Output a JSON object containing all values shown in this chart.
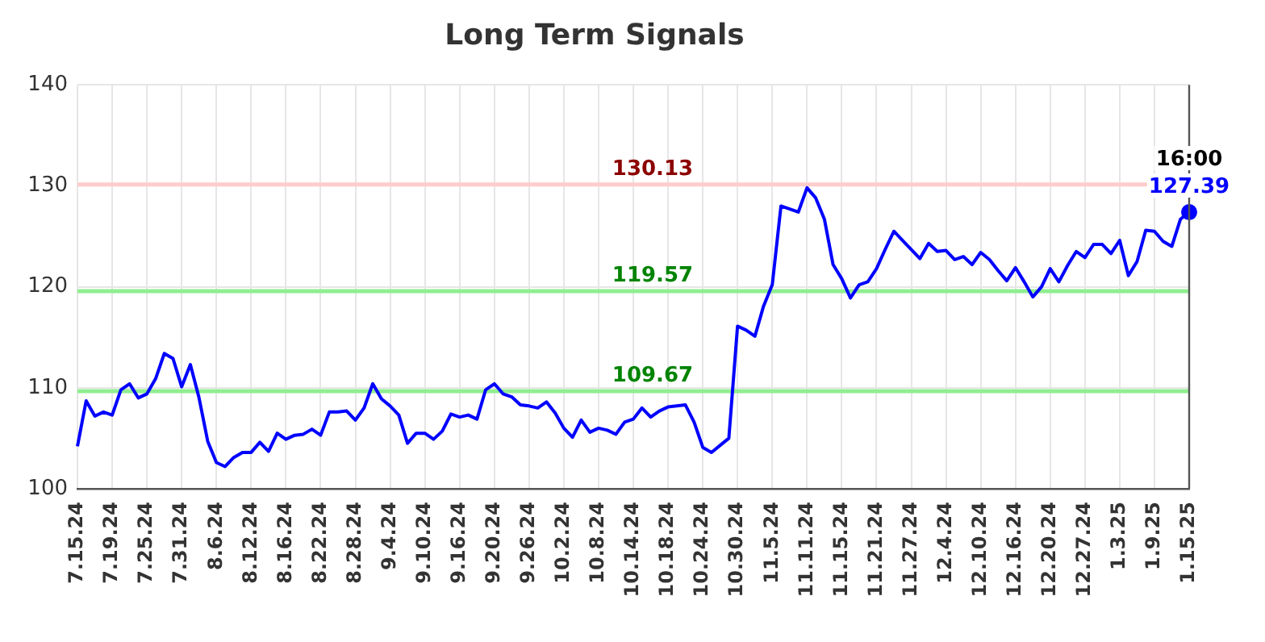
{
  "chart_data": {
    "type": "line",
    "title": "Long Term Signals",
    "categories": [
      "7.15.24",
      null,
      null,
      null,
      "7.19.24",
      null,
      null,
      null,
      "7.25.24",
      null,
      null,
      null,
      "7.31.24",
      null,
      null,
      null,
      "8.6.24",
      null,
      null,
      null,
      "8.12.24",
      null,
      null,
      null,
      "8.16.24",
      null,
      null,
      null,
      "8.22.24",
      null,
      null,
      null,
      "8.28.24",
      null,
      null,
      null,
      "9.4.24",
      null,
      null,
      null,
      "9.10.24",
      null,
      null,
      null,
      "9.16.24",
      null,
      null,
      null,
      "9.20.24",
      null,
      null,
      null,
      "9.26.24",
      null,
      null,
      null,
      "10.2.24",
      null,
      null,
      null,
      "10.8.24",
      null,
      null,
      null,
      "10.14.24",
      null,
      null,
      null,
      "10.18.24",
      null,
      null,
      null,
      "10.24.24",
      null,
      null,
      null,
      "10.30.24",
      null,
      null,
      null,
      "11.5.24",
      null,
      null,
      null,
      "11.11.24",
      null,
      null,
      null,
      "11.15.24",
      null,
      null,
      null,
      "11.21.24",
      null,
      null,
      null,
      "11.27.24",
      null,
      null,
      null,
      "12.4.24",
      null,
      null,
      null,
      "12.10.24",
      null,
      null,
      null,
      "12.16.24",
      null,
      null,
      null,
      "12.20.24",
      null,
      null,
      null,
      "12.27.24",
      null,
      null,
      null,
      "1.3.25",
      null,
      null,
      null,
      "1.9.25",
      null,
      null,
      null,
      "1.15.25"
    ],
    "series": [
      {
        "color": "#0000ff",
        "marker": "none",
        "values": [
          104.2,
          108.7,
          107.2,
          107.6,
          107.3,
          109.8,
          110.4,
          109.0,
          109.4,
          110.9,
          113.4,
          112.9,
          110.1,
          112.3,
          109.0,
          104.7,
          102.6,
          102.2,
          103.1,
          103.6,
          103.6,
          104.6,
          103.7,
          105.5,
          104.9,
          105.3,
          105.4,
          105.9,
          105.3,
          107.6,
          107.6,
          107.7,
          106.8,
          108.0,
          110.4,
          108.9,
          108.2,
          107.3,
          104.5,
          105.5,
          105.5,
          104.9,
          105.7,
          107.4,
          107.1,
          107.3,
          106.9,
          109.8,
          110.4,
          109.4,
          109.1,
          108.3,
          108.2,
          108.0,
          108.6,
          107.5,
          106.0,
          105.1,
          106.8,
          105.6,
          106.0,
          105.8,
          105.4,
          106.6,
          106.9,
          108.0,
          107.1,
          107.7,
          108.1,
          108.2,
          108.3,
          106.6,
          104.1,
          103.6,
          104.3,
          105.0,
          116.1,
          115.7,
          115.1,
          118.1,
          120.2,
          128.0,
          127.7,
          127.4,
          129.8,
          128.8,
          126.7,
          122.2,
          120.8,
          118.9,
          120.2,
          120.5,
          121.8,
          123.7,
          125.5,
          124.6,
          123.7,
          122.8,
          124.3,
          123.5,
          123.6,
          122.7,
          123.0,
          122.2,
          123.4,
          122.7,
          121.6,
          120.6,
          121.9,
          120.5,
          119.0,
          120.0,
          121.8,
          120.5,
          122.1,
          123.5,
          122.9,
          124.2,
          124.2,
          123.3,
          124.6,
          121.1,
          122.5,
          125.6,
          125.5,
          124.5,
          124.0,
          126.7,
          127.4
        ]
      },
      {
        "type": "scatter",
        "color": "#0000ff",
        "marker": "circle",
        "x": [
          "1.15.25"
        ],
        "values": [
          127.39
        ],
        "value_labels": [
          "127.39"
        ]
      }
    ],
    "ylim": [
      100,
      140
    ],
    "yticks": [
      100,
      110,
      120,
      130,
      140
    ],
    "grid": true,
    "legend": false,
    "ref_lines": [
      {
        "axis": "y",
        "value": 130.13,
        "label": "130.13",
        "color": "#ffcccc"
      },
      {
        "axis": "y",
        "value": 119.57,
        "label": "119.57",
        "color": "#90ee90"
      },
      {
        "axis": "y",
        "value": 109.67,
        "label": "109.67",
        "color": "#90ee90"
      }
    ],
    "annotations": [
      {
        "text": "16:00",
        "x": "1.15.25",
        "y": 127.39
      }
    ]
  }
}
